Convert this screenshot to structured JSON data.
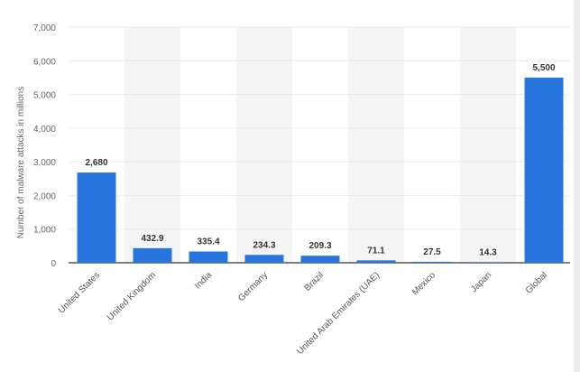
{
  "chart_data": {
    "type": "bar",
    "title": "",
    "xlabel": "",
    "ylabel": "Number of malware attacks in millions",
    "categories": [
      "United States",
      "United Kingdom",
      "India",
      "Germany",
      "Brazil",
      "United Arab Emirates (UAE)",
      "Mexico",
      "Japan",
      "Global"
    ],
    "values": [
      2680,
      432.9,
      335.4,
      234.3,
      209.3,
      71.1,
      27.5,
      14.3,
      5500
    ],
    "data_labels": [
      "2,680",
      "432.9",
      "335.4",
      "234.3",
      "209.3",
      "71.1",
      "27.5",
      "14.3",
      "5,500"
    ],
    "ylim": [
      0,
      7000
    ],
    "yticks": [
      0,
      1000,
      2000,
      3000,
      4000,
      5000,
      6000,
      7000
    ],
    "ytick_labels": [
      "0",
      "1,000",
      "2,000",
      "3,000",
      "4,000",
      "5,000",
      "6,000",
      "7,000"
    ],
    "grid": true,
    "legend": "none",
    "colors": {
      "bar": "#2876dd",
      "band": "#f5f5f5",
      "grid": "#dcdcdc",
      "axis": "#555555"
    }
  }
}
